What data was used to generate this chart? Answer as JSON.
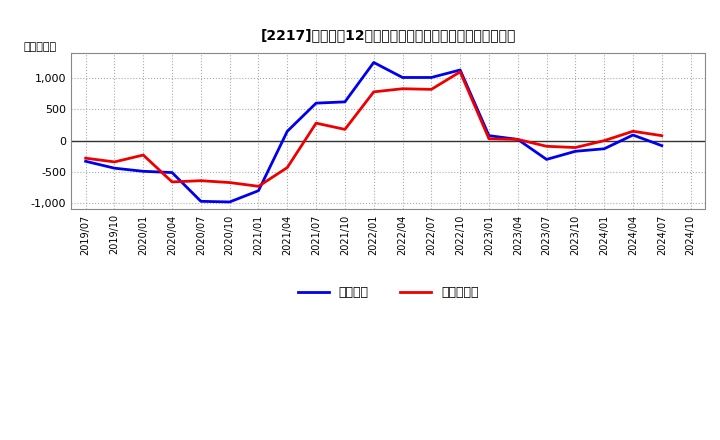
{
  "title": "[　2217　]  利益だ12か月移動合計の対前年同期増減額の推移",
  "title_text": "[2217]　利益だ12か月移動合計の対前年同期増減額の推移",
  "ylabel": "（百万円）",
  "background_color": "#ffffff",
  "plot_bg_color": "#ffffff",
  "grid_color": "#aaaaaa",
  "x_labels": [
    "2019/07",
    "2019/10",
    "2020/01",
    "2020/04",
    "2020/07",
    "2020/10",
    "2021/01",
    "2021/04",
    "2021/07",
    "2021/10",
    "2022/01",
    "2022/04",
    "2022/07",
    "2022/10",
    "2023/01",
    "2023/04",
    "2023/07",
    "2023/10",
    "2024/01",
    "2024/04",
    "2024/07",
    "2024/10"
  ],
  "keijo_rieki": [
    -330,
    -440,
    -490,
    -510,
    -970,
    -980,
    -800,
    150,
    600,
    620,
    1250,
    1010,
    1010,
    1130,
    80,
    20,
    -300,
    -170,
    -130,
    90,
    -80,
    null
  ],
  "touki_junrieki": [
    -280,
    -340,
    -230,
    -660,
    -640,
    -670,
    -730,
    -430,
    280,
    180,
    780,
    830,
    820,
    1100,
    30,
    20,
    -90,
    -110,
    0,
    150,
    80,
    null
  ],
  "ylim": [
    -1100,
    1400
  ],
  "yticks": [
    -1000,
    -500,
    0,
    500,
    1000
  ],
  "line_color_keijo": "#0000ee",
  "line_color_touki": "#ee0000",
  "line_width": 2.0,
  "legend_keijo": "経常利益",
  "legend_touki": "当期純利益"
}
